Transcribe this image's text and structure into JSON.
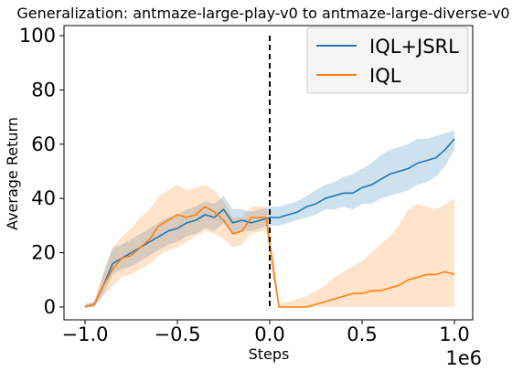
{
  "chart_data": {
    "type": "line",
    "title": "Generalization: antmaze-large-play-v0 to antmaze-large-diverse-v0",
    "xlabel": "Steps",
    "ylabel": "Average Return",
    "x_offset_label": "1e6",
    "xlim": [
      -1.0,
      1.0
    ],
    "ylim": [
      0,
      100
    ],
    "xticks": [
      -1.0,
      -0.5,
      0.0,
      0.5,
      1.0
    ],
    "xtick_labels": [
      "−1.0",
      "−0.5",
      "0.0",
      "0.5",
      "1.0"
    ],
    "yticks": [
      0,
      20,
      40,
      60,
      80,
      100
    ],
    "ytick_labels": [
      "0",
      "20",
      "40",
      "60",
      "80",
      "100"
    ],
    "grid": false,
    "legend_position": "top-right",
    "vertical_line": {
      "x": 0.0,
      "y_range": [
        0,
        100
      ],
      "style": "dashed",
      "color": "#000000"
    },
    "series": [
      {
        "name": "IQL+JSRL",
        "color": "#1f77b4",
        "x": [
          -1.0,
          -0.95,
          -0.9,
          -0.85,
          -0.8,
          -0.75,
          -0.7,
          -0.65,
          -0.6,
          -0.55,
          -0.5,
          -0.45,
          -0.4,
          -0.35,
          -0.3,
          -0.25,
          -0.2,
          -0.15,
          -0.1,
          -0.05,
          0.0,
          0.05,
          0.1,
          0.15,
          0.2,
          0.25,
          0.3,
          0.35,
          0.4,
          0.45,
          0.5,
          0.55,
          0.6,
          0.65,
          0.7,
          0.75,
          0.8,
          0.85,
          0.9,
          0.95,
          1.0
        ],
        "y": [
          0,
          1,
          8,
          16,
          18,
          20,
          22,
          24,
          26,
          28,
          29,
          31,
          32,
          34,
          33,
          36,
          31,
          32,
          31,
          32,
          33,
          33,
          34,
          35,
          37,
          38,
          40,
          41,
          42,
          42,
          44,
          45,
          47,
          49,
          50,
          51,
          53,
          54,
          55,
          58,
          62
        ],
        "lower": [
          0,
          0,
          5,
          12,
          14,
          15,
          17,
          19,
          21,
          23,
          24,
          26,
          27,
          29,
          28,
          31,
          27,
          28,
          28,
          29,
          30,
          30,
          31,
          32,
          33,
          34,
          36,
          36,
          37,
          36,
          38,
          38,
          40,
          41,
          42,
          43,
          45,
          46,
          48,
          52,
          58
        ],
        "upper": [
          1,
          2,
          12,
          22,
          23,
          25,
          27,
          29,
          31,
          33,
          34,
          36,
          37,
          39,
          38,
          41,
          36,
          36,
          35,
          36,
          37,
          37,
          38,
          39,
          41,
          43,
          45,
          46,
          48,
          49,
          51,
          53,
          56,
          58,
          59,
          60,
          62,
          62,
          63,
          64,
          65
        ]
      },
      {
        "name": "IQL",
        "color": "#ff7f0e",
        "x": [
          -1.0,
          -0.95,
          -0.9,
          -0.85,
          -0.8,
          -0.75,
          -0.7,
          -0.65,
          -0.6,
          -0.55,
          -0.5,
          -0.45,
          -0.4,
          -0.35,
          -0.3,
          -0.25,
          -0.2,
          -0.15,
          -0.1,
          -0.05,
          -0.02,
          0.0,
          0.02,
          0.05,
          0.1,
          0.15,
          0.2,
          0.25,
          0.3,
          0.35,
          0.4,
          0.45,
          0.5,
          0.55,
          0.6,
          0.65,
          0.7,
          0.75,
          0.8,
          0.85,
          0.9,
          0.95,
          1.0
        ],
        "y": [
          0,
          1,
          8,
          14,
          18,
          19,
          22,
          25,
          30,
          32,
          34,
          33,
          34,
          37,
          35,
          32,
          27,
          28,
          33,
          33,
          33,
          23,
          14,
          0,
          0,
          0,
          0,
          1,
          2,
          3,
          4,
          5,
          5,
          6,
          6,
          7,
          8,
          10,
          11,
          12,
          12,
          13,
          12
        ],
        "lower": [
          0,
          0,
          4,
          8,
          11,
          12,
          14,
          16,
          19,
          21,
          22,
          24,
          26,
          28,
          27,
          25,
          22,
          23,
          27,
          28,
          28,
          18,
          10,
          0,
          0,
          0,
          0,
          0,
          0,
          0,
          0,
          0,
          0,
          0,
          0,
          0,
          0,
          0,
          0,
          0,
          0,
          0,
          0
        ],
        "upper": [
          1,
          2,
          13,
          22,
          26,
          29,
          33,
          36,
          41,
          43,
          45,
          43,
          44,
          45,
          43,
          39,
          33,
          33,
          37,
          37,
          37,
          28,
          19,
          1,
          2,
          3,
          4,
          6,
          8,
          11,
          13,
          15,
          17,
          20,
          23,
          26,
          30,
          36,
          38,
          37,
          36,
          38,
          40
        ]
      }
    ]
  }
}
